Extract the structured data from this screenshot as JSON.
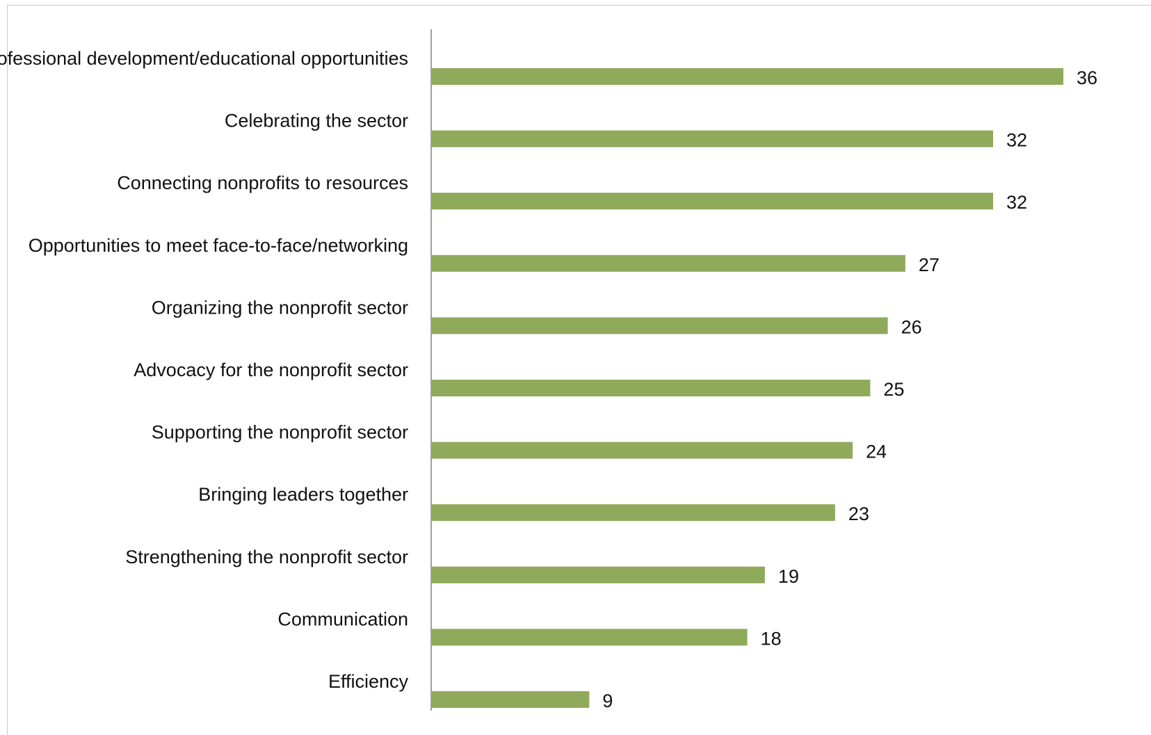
{
  "chart_data": {
    "type": "bar",
    "orientation": "horizontal",
    "categories": [
      "Professional development/educational opportunities",
      "Celebrating the sector",
      "Connecting nonprofits to resources",
      "Opportunities to meet face-to-face/networking",
      "Organizing the nonprofit sector",
      "Advocacy for the nonprofit sector",
      "Supporting the nonprofit sector",
      "Bringing leaders together",
      "Strengthening the nonprofit sector",
      "Communication",
      "Efficiency"
    ],
    "values": [
      36,
      32,
      32,
      27,
      26,
      25,
      24,
      23,
      19,
      18,
      9
    ],
    "data_labels": [
      "36",
      "32",
      "32",
      "27",
      "26",
      "25",
      "24",
      "23",
      "19",
      "18",
      "9"
    ],
    "title": "",
    "xlabel": "",
    "ylabel": "",
    "xlim": [
      0,
      36
    ],
    "grid": false,
    "legend": "none",
    "bar_color": "#8faa5b",
    "axis_color": "#a0a0a0"
  }
}
